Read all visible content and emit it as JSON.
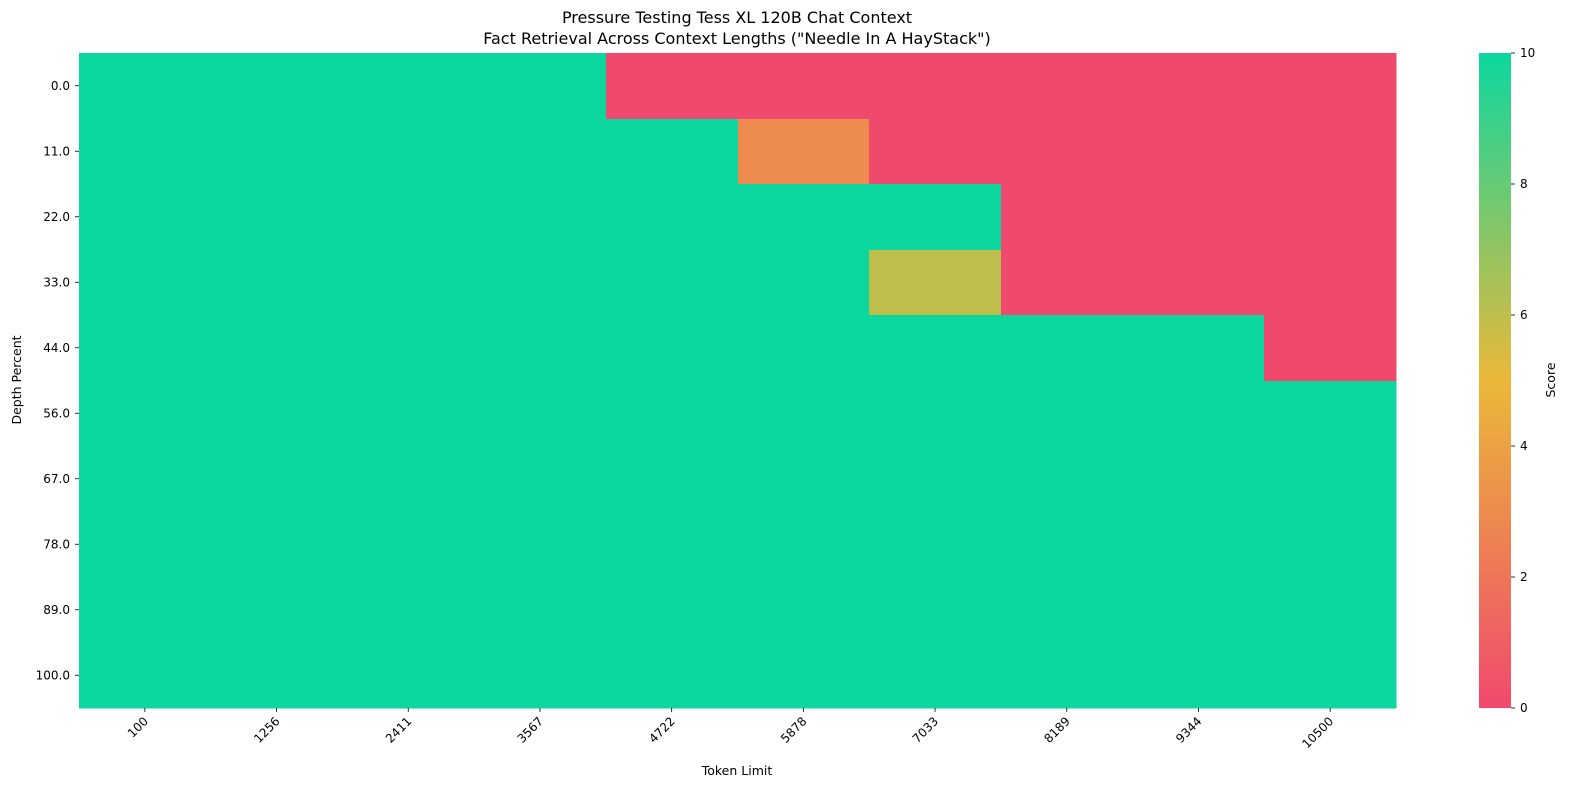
{
  "chart_data": {
    "type": "heatmap",
    "title": "Pressure Testing Tess XL 120B Chat Context",
    "subtitle": "Fact Retrieval Across Context Lengths (\"Needle In A HayStack\")",
    "xlabel": "Token Limit",
    "ylabel": "Depth Percent",
    "x": [
      "100",
      "1256",
      "2411",
      "3567",
      "4722",
      "5878",
      "7033",
      "8189",
      "9344",
      "10500"
    ],
    "y": [
      "0.0",
      "11.0",
      "22.0",
      "33.0",
      "44.0",
      "56.0",
      "67.0",
      "78.0",
      "89.0",
      "100.0"
    ],
    "z": [
      [
        10,
        10,
        10,
        10,
        0,
        0,
        0,
        0,
        0,
        0
      ],
      [
        10,
        10,
        10,
        10,
        10,
        3,
        0,
        0,
        0,
        0
      ],
      [
        10,
        10,
        10,
        10,
        10,
        10,
        10,
        0,
        0,
        0
      ],
      [
        10,
        10,
        10,
        10,
        10,
        10,
        6,
        0,
        0,
        0
      ],
      [
        10,
        10,
        10,
        10,
        10,
        10,
        10,
        10,
        10,
        0
      ],
      [
        10,
        10,
        10,
        10,
        10,
        10,
        10,
        10,
        10,
        10
      ],
      [
        10,
        10,
        10,
        10,
        10,
        10,
        10,
        10,
        10,
        10
      ],
      [
        10,
        10,
        10,
        10,
        10,
        10,
        10,
        10,
        10,
        10
      ],
      [
        10,
        10,
        10,
        10,
        10,
        10,
        10,
        10,
        10,
        10
      ],
      [
        10,
        10,
        10,
        10,
        10,
        10,
        10,
        10,
        10,
        10
      ]
    ],
    "colorbar": {
      "label": "Score",
      "range": [
        0,
        10
      ],
      "ticks": [
        "0",
        "2",
        "4",
        "6",
        "8",
        "10"
      ],
      "colors": [
        "#F0496E",
        "#EBB839",
        "#0CD79F"
      ]
    }
  }
}
